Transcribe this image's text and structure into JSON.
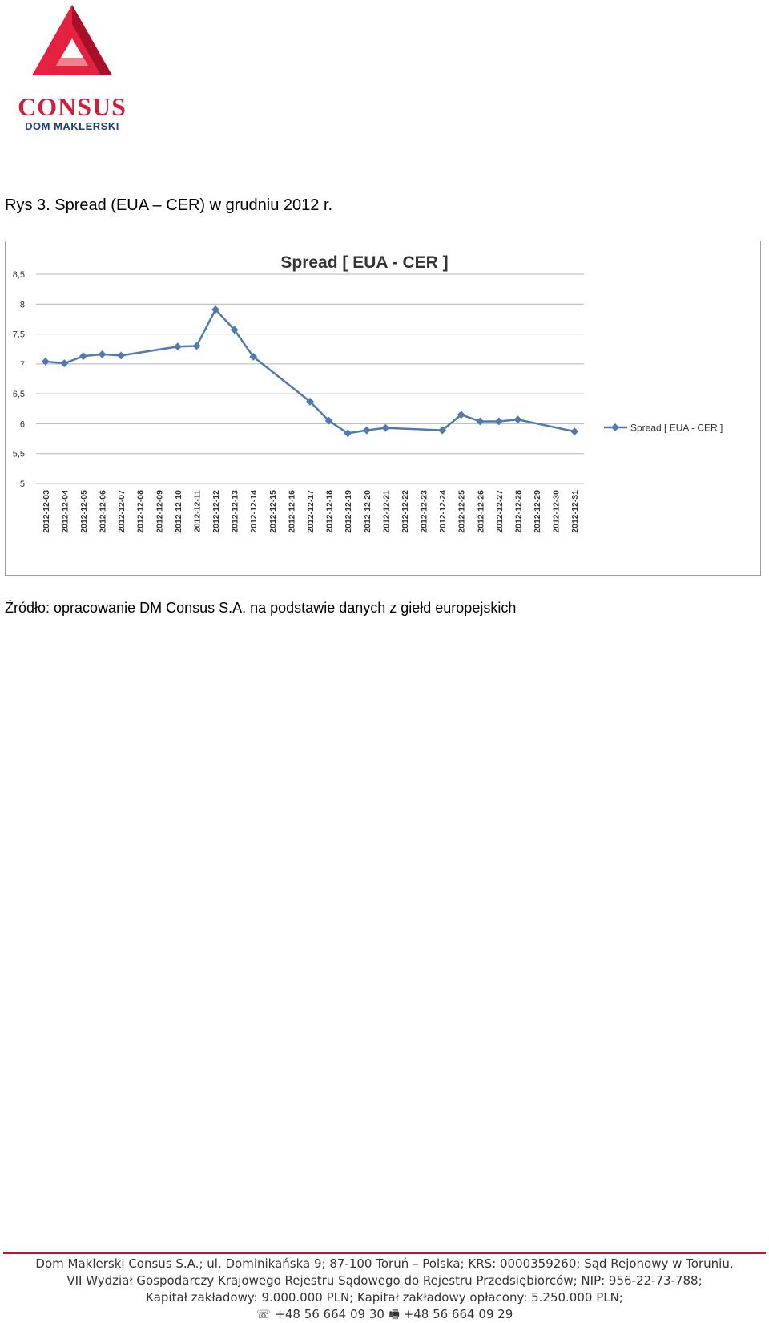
{
  "logo": {
    "name": "CONSUS",
    "sub": "DOM MAKLERSKI"
  },
  "caption": "Rys 3. Spread (EUA – CER) w grudniu 2012 r.",
  "source": "Źródło: opracowanie DM Consus S.A. na podstawie danych z giełd europejskich",
  "footer": {
    "line1": "Dom Maklerski Consus S.A.; ul. Dominikańska 9; 87-100 Toruń – Polska; KRS: 0000359260; Sąd Rejonowy w Toruniu,",
    "line2": "VII Wydział Gospodarczy Krajowego Rejestru Sądowego do Rejestru Przedsiębiorców; NIP: 956-22-73-788;",
    "line3": "Kapitał zakładowy: 9.000.000 PLN; Kapitał zakładowy opłacony: 5.250.000 PLN;",
    "phone_icon": "phone-icon",
    "phone": "+48 56 664 09 30",
    "fax_icon": "fax-icon",
    "fax": "+48 56 664 09 29"
  },
  "colors": {
    "brand_red": "#d01f3c",
    "brand_navy": "#1d3f7a",
    "series": "#4f7bb0"
  },
  "chart_data": {
    "type": "line",
    "title": "Spread [ EUA - CER ]",
    "categories": [
      "2012-12-03",
      "2012-12-04",
      "2012-12-05",
      "2012-12-06",
      "2012-12-07",
      "2012-12-08",
      "2012-12-09",
      "2012-12-10",
      "2012-12-11",
      "2012-12-12",
      "2012-12-13",
      "2012-12-14",
      "2012-12-15",
      "2012-12-16",
      "2012-12-17",
      "2012-12-18",
      "2012-12-19",
      "2012-12-20",
      "2012-12-21",
      "2012-12-22",
      "2012-12-23",
      "2012-12-24",
      "2012-12-25",
      "2012-12-26",
      "2012-12-27",
      "2012-12-28",
      "2012-12-29",
      "2012-12-30",
      "2012-12-31"
    ],
    "series": [
      {
        "name": "Spread [ EUA - CER ]",
        "color": "#4f7bb0",
        "values": [
          7.04,
          7.01,
          7.13,
          7.16,
          7.14,
          null,
          null,
          7.29,
          7.3,
          7.91,
          7.57,
          7.12,
          null,
          null,
          6.37,
          6.05,
          5.84,
          5.89,
          5.93,
          null,
          null,
          5.89,
          6.15,
          6.04,
          6.04,
          6.07,
          null,
          null,
          5.87
        ]
      }
    ],
    "yticks": [
      "8,5",
      "8",
      "7,5",
      "7",
      "6,5",
      "6",
      "5,5",
      "5"
    ],
    "ytick_values": [
      8.5,
      8,
      7.5,
      7,
      6.5,
      6,
      5.5,
      5
    ],
    "ylim": [
      5,
      8.5
    ],
    "grid": true,
    "legend": "right"
  }
}
